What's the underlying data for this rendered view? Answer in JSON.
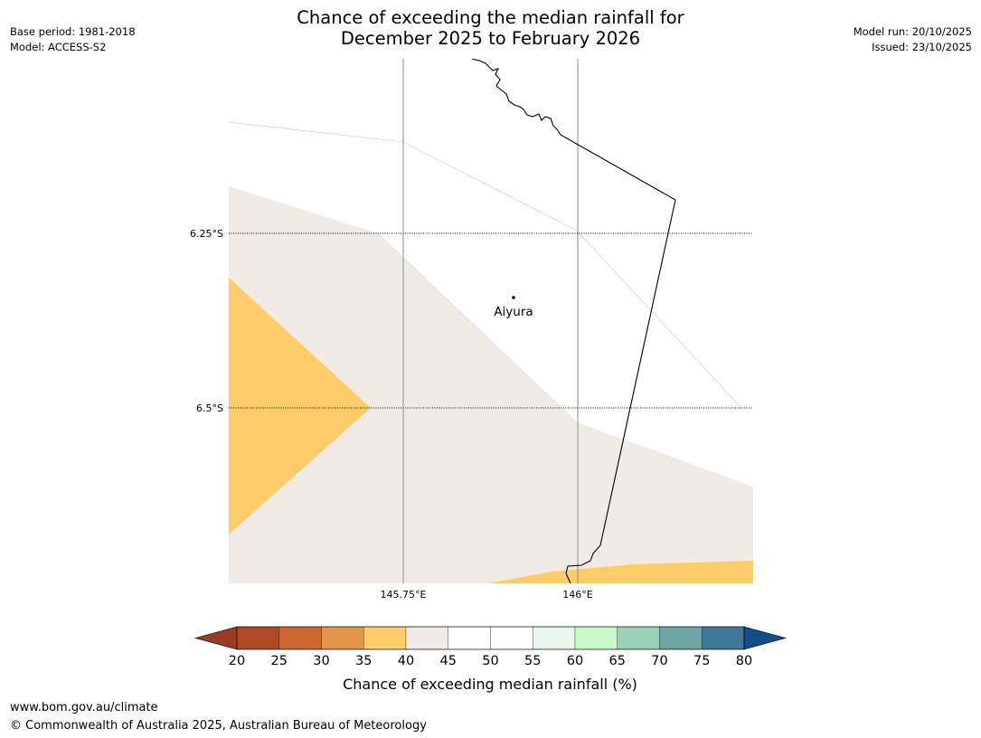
{
  "title": {
    "line1": "Chance of exceeding the median rainfall for",
    "line2": "December 2025 to February 2026"
  },
  "meta_left": {
    "base_period": "Base period: 1981-2018",
    "model": "Model: ACCESS-S2"
  },
  "meta_right": {
    "model_run": "Model run: 20/10/2025",
    "issued": "Issued: 23/10/2025"
  },
  "map": {
    "lat_labels": [
      "6.25°S",
      "6.5°S"
    ],
    "lon_labels": [
      "145.75°E",
      "146°E"
    ],
    "place": "Aiyura"
  },
  "colorbar": {
    "label": "Chance of exceeding median rainfall (%)",
    "ticks": [
      "20",
      "25",
      "30",
      "35",
      "40",
      "45",
      "50",
      "55",
      "60",
      "65",
      "70",
      "75",
      "80"
    ],
    "under_color": "#9a3b23",
    "over_color": "#134e88",
    "colors": [
      "#b04a25",
      "#cc6632",
      "#e3954a",
      "#fecc69",
      "#f0ebe5",
      "#ffffff",
      "#ffffff",
      "#eaf7ea",
      "#c9fbc9",
      "#9bd1b8",
      "#6da6a4",
      "#3e7899"
    ]
  },
  "footer": {
    "url": "www.bom.gov.au/climate",
    "copyright": "© Commonwealth of Australia 2025, Australian Bureau of Meteorology"
  }
}
